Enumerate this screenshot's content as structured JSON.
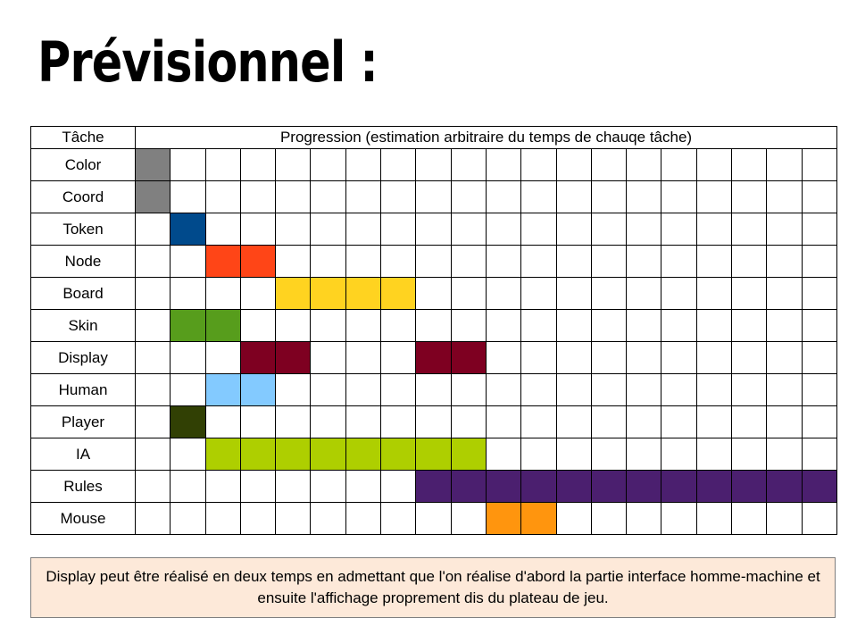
{
  "title": "Prévisionnel :",
  "table": {
    "task_header": "Tâche",
    "progress_header": "Progression (estimation arbitraire du temps de chauqe tâche)",
    "slot_count": 20,
    "tasks": [
      {
        "name": "Color",
        "color": "#808080",
        "slots": [
          1
        ]
      },
      {
        "name": "Coord",
        "color": "#808080",
        "slots": [
          1
        ]
      },
      {
        "name": "Token",
        "color": "#004a8c",
        "slots": [
          2
        ]
      },
      {
        "name": "Node",
        "color": "#ff4517",
        "slots": [
          3,
          4
        ]
      },
      {
        "name": "Board",
        "color": "#ffd320",
        "slots": [
          5,
          6,
          7,
          8
        ]
      },
      {
        "name": "Skin",
        "color": "#579d1c",
        "slots": [
          2,
          3
        ]
      },
      {
        "name": "Display",
        "color": "#7e0021",
        "slots": [
          4,
          5,
          9,
          10
        ]
      },
      {
        "name": "Human",
        "color": "#83caff",
        "slots": [
          3,
          4
        ]
      },
      {
        "name": "Player",
        "color": "#314004",
        "slots": [
          2
        ]
      },
      {
        "name": "IA",
        "color": "#aecf00",
        "slots": [
          3,
          4,
          5,
          6,
          7,
          8,
          9,
          10
        ]
      },
      {
        "name": "Rules",
        "color": "#4b1f6f",
        "slots": [
          9,
          10,
          11,
          12,
          13,
          14,
          15,
          16,
          17,
          18,
          19,
          20
        ]
      },
      {
        "name": "Mouse",
        "color": "#ff950e",
        "slots": [
          11,
          12
        ]
      }
    ]
  },
  "note": "Display peut être réalisé en deux temps en admettant que l'on réalise d'abord la partie interface homme-machine et ensuite l'affichage proprement dis du plateau de jeu."
}
